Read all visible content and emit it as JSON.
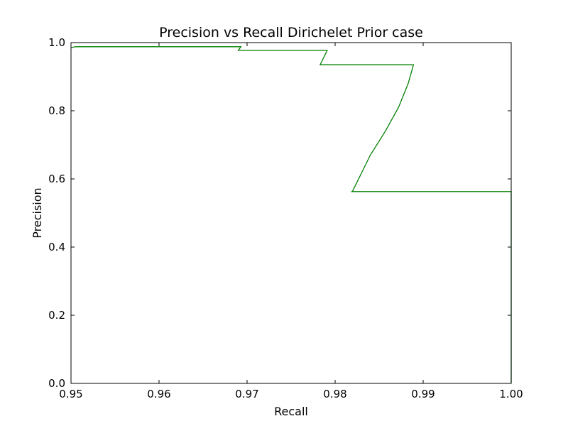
{
  "chart_data": {
    "type": "line",
    "title": "Precision vs Recall Dirichelet Prior case",
    "xlabel": "Recall",
    "ylabel": "Precision",
    "xlim": [
      0.95,
      1.0
    ],
    "ylim": [
      0.0,
      1.0
    ],
    "xticks": [
      "0.95",
      "0.96",
      "0.97",
      "0.98",
      "0.99",
      "1.00"
    ],
    "yticks": [
      "0.0",
      "0.2",
      "0.4",
      "0.6",
      "0.8",
      "1.0"
    ],
    "grid": false,
    "series": [
      {
        "color": "#008000",
        "x": [
          0.95,
          0.9505,
          0.9693,
          0.969,
          0.9791,
          0.9783,
          0.9889,
          0.9883,
          0.9872,
          0.9857,
          0.984,
          0.982,
          0.9819,
          1.0,
          1.0
        ],
        "y": [
          0.985,
          0.988,
          0.988,
          0.977,
          0.977,
          0.935,
          0.935,
          0.88,
          0.81,
          0.74,
          0.67,
          0.565,
          0.563,
          0.563,
          0.0
        ]
      }
    ]
  }
}
